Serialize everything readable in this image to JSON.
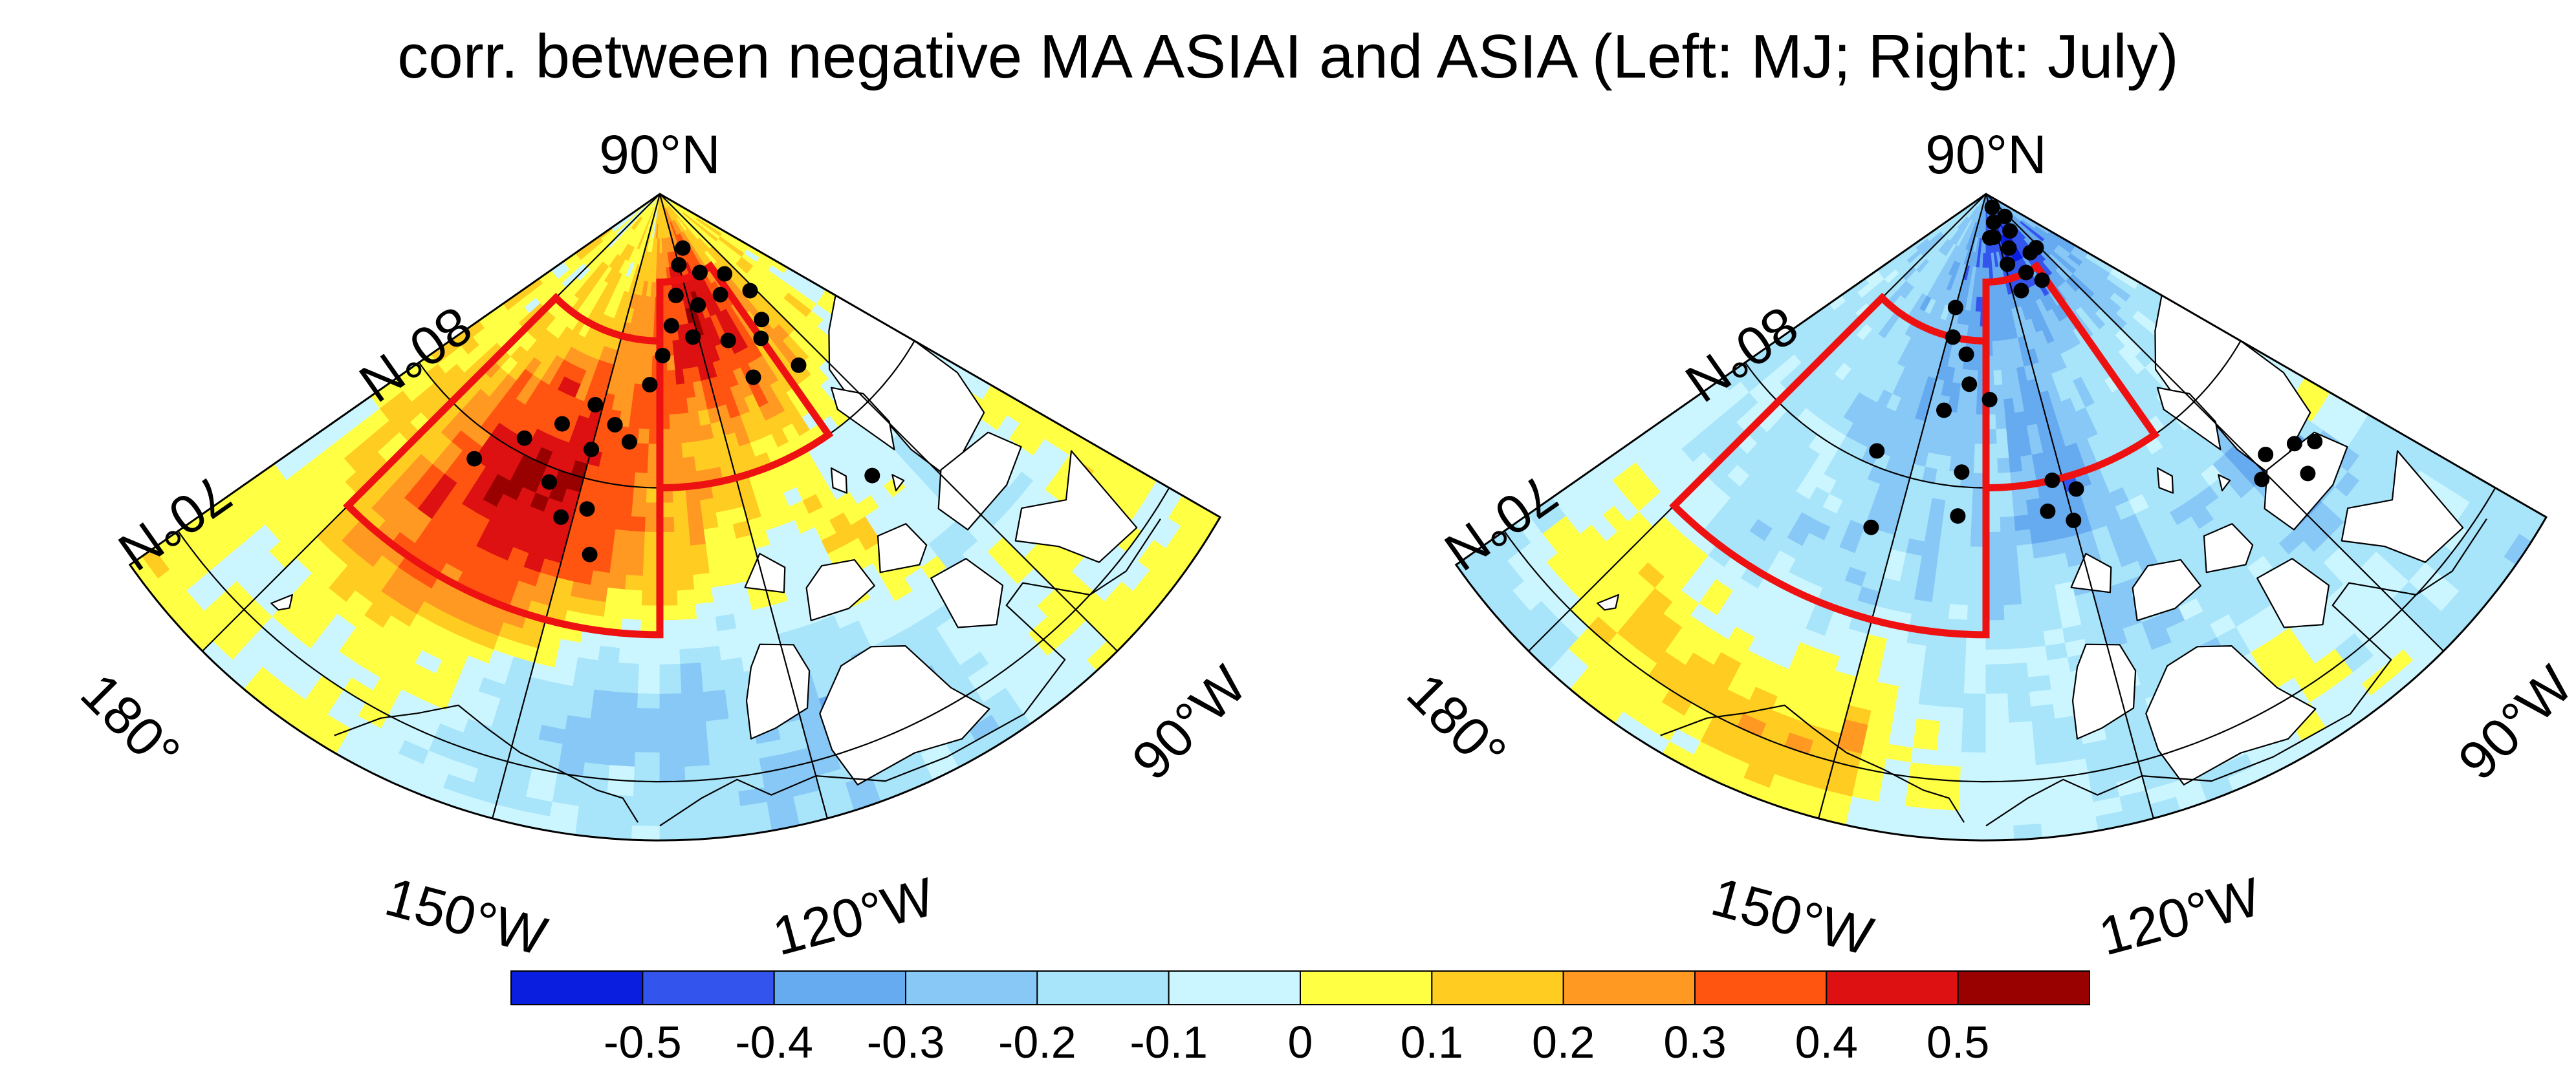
{
  "chart_data": {
    "type": "heatmap",
    "title": "corr. between negative MA ASIAI and ASIA (Left: MJ; Right: July)",
    "panels": [
      {
        "name": "Left: MJ",
        "projection": "polar stereographic sector",
        "lat_range": [
          68,
          90
        ],
        "lon_range": [
          -190,
          -75
        ],
        "lat_labels": [
          "70°N",
          "80°N",
          "90°N"
        ],
        "lon_labels": [
          "180°",
          "150°W",
          "120°W",
          "90°W"
        ],
        "lat_label_values": [
          70,
          80,
          90
        ],
        "lon_label_values": [
          -180,
          -150,
          -120,
          -90
        ],
        "meridians": [
          -180,
          -150,
          -120,
          -90
        ],
        "parallels": [
          70,
          80
        ],
        "pattern": "positive",
        "max_correlation": 0.5,
        "significant_points": [
          [
            79,
            -170
          ],
          [
            80.5,
            -164
          ],
          [
            81.5,
            -158
          ],
          [
            82.5,
            -152
          ],
          [
            81,
            -150
          ],
          [
            82,
            -146
          ],
          [
            81.5,
            -142
          ],
          [
            79.5,
            -156
          ],
          [
            78.5,
            -152
          ],
          [
            79,
            -148
          ],
          [
            77.5,
            -146
          ],
          [
            83.5,
            -138
          ],
          [
            84.5,
            -134
          ],
          [
            85.5,
            -130
          ],
          [
            86.5,
            -126
          ],
          [
            87.5,
            -120
          ],
          [
            85,
            -122
          ],
          [
            86,
            -116
          ],
          [
            88,
            -112
          ],
          [
            87,
            -108
          ],
          [
            86,
            -104
          ],
          [
            84.5,
            -110
          ],
          [
            83,
            -108
          ],
          [
            84,
            -100
          ],
          [
            86.5,
            -96
          ],
          [
            85.5,
            -92
          ],
          [
            84.5,
            -96
          ],
          [
            82.5,
            -96
          ],
          [
            78,
            -98
          ]
        ],
        "boxes": [
          {
            "name": "region-west",
            "lat": [
              75,
              85
            ],
            "lon": [
              -180,
              -135
            ]
          },
          {
            "name": "region-east",
            "lat": [
              80,
              87
            ],
            "lon": [
              -135,
              -100
            ]
          }
        ]
      },
      {
        "name": "Right: July",
        "projection": "polar stereographic sector",
        "lat_range": [
          68,
          90
        ],
        "lon_range": [
          -190,
          -75
        ],
        "lat_labels": [
          "70°N",
          "80°N",
          "90°N"
        ],
        "lon_labels": [
          "180°",
          "150°W",
          "120°W",
          "90°W"
        ],
        "lat_label_values": [
          70,
          80,
          90
        ],
        "lon_label_values": [
          -180,
          -150,
          -120,
          -90
        ],
        "meridians": [
          -180,
          -150,
          -120,
          -90
        ],
        "parallels": [
          70,
          80
        ],
        "pattern": "negative",
        "max_correlation": -0.5,
        "significant_points": [
          [
            86,
            -150
          ],
          [
            85,
            -148
          ],
          [
            84.5,
            -142
          ],
          [
            83.5,
            -140
          ],
          [
            82.5,
            -146
          ],
          [
            80.5,
            -158
          ],
          [
            83,
            -134
          ],
          [
            80.5,
            -140
          ],
          [
            78,
            -154
          ],
          [
            79,
            -140
          ],
          [
            88.5,
            -130
          ],
          [
            89,
            -120
          ],
          [
            89.5,
            -110
          ],
          [
            88.5,
            -102
          ],
          [
            88,
            -112
          ],
          [
            87.5,
            -118
          ],
          [
            88.5,
            -125
          ],
          [
            87,
            -108
          ],
          [
            87.5,
            -98
          ],
          [
            86.5,
            -102
          ],
          [
            87.5,
            -92
          ],
          [
            89,
            -95
          ],
          [
            86.5,
            -115
          ],
          [
            80,
            -122
          ],
          [
            79,
            -124
          ],
          [
            78.5,
            -120
          ],
          [
            79.5,
            -118
          ],
          [
            76.5,
            -84
          ],
          [
            75.5,
            -86
          ],
          [
            76,
            -82
          ],
          [
            77,
            -88
          ],
          [
            76.5,
            -91
          ]
        ],
        "boxes": [
          {
            "name": "region-west",
            "lat": [
              75,
              85
            ],
            "lon": [
              -180,
              -135
            ]
          },
          {
            "name": "region-east",
            "lat": [
              80,
              87
            ],
            "lon": [
              -135,
              -100
            ]
          }
        ]
      }
    ],
    "colorbar": {
      "levels": [
        -0.6,
        -0.5,
        -0.4,
        -0.3,
        -0.2,
        -0.1,
        0,
        0.1,
        0.2,
        0.3,
        0.4,
        0.5,
        0.6
      ],
      "colors": [
        "#0a1ee0",
        "#3355ee",
        "#66aaf0",
        "#88c8f6",
        "#a8e4fa",
        "#ccf6ff",
        "#ffff44",
        "#ffcc22",
        "#ff9922",
        "#ff5511",
        "#dd1111",
        "#990000"
      ],
      "tick_labels": [
        "-0.5",
        "-0.4",
        "-0.3",
        "-0.2",
        "-0.1",
        "0",
        "0.1",
        "0.2",
        "0.3",
        "0.4",
        "0.5"
      ]
    },
    "significance_marker": "black dots",
    "box_color": "#ee1111"
  }
}
